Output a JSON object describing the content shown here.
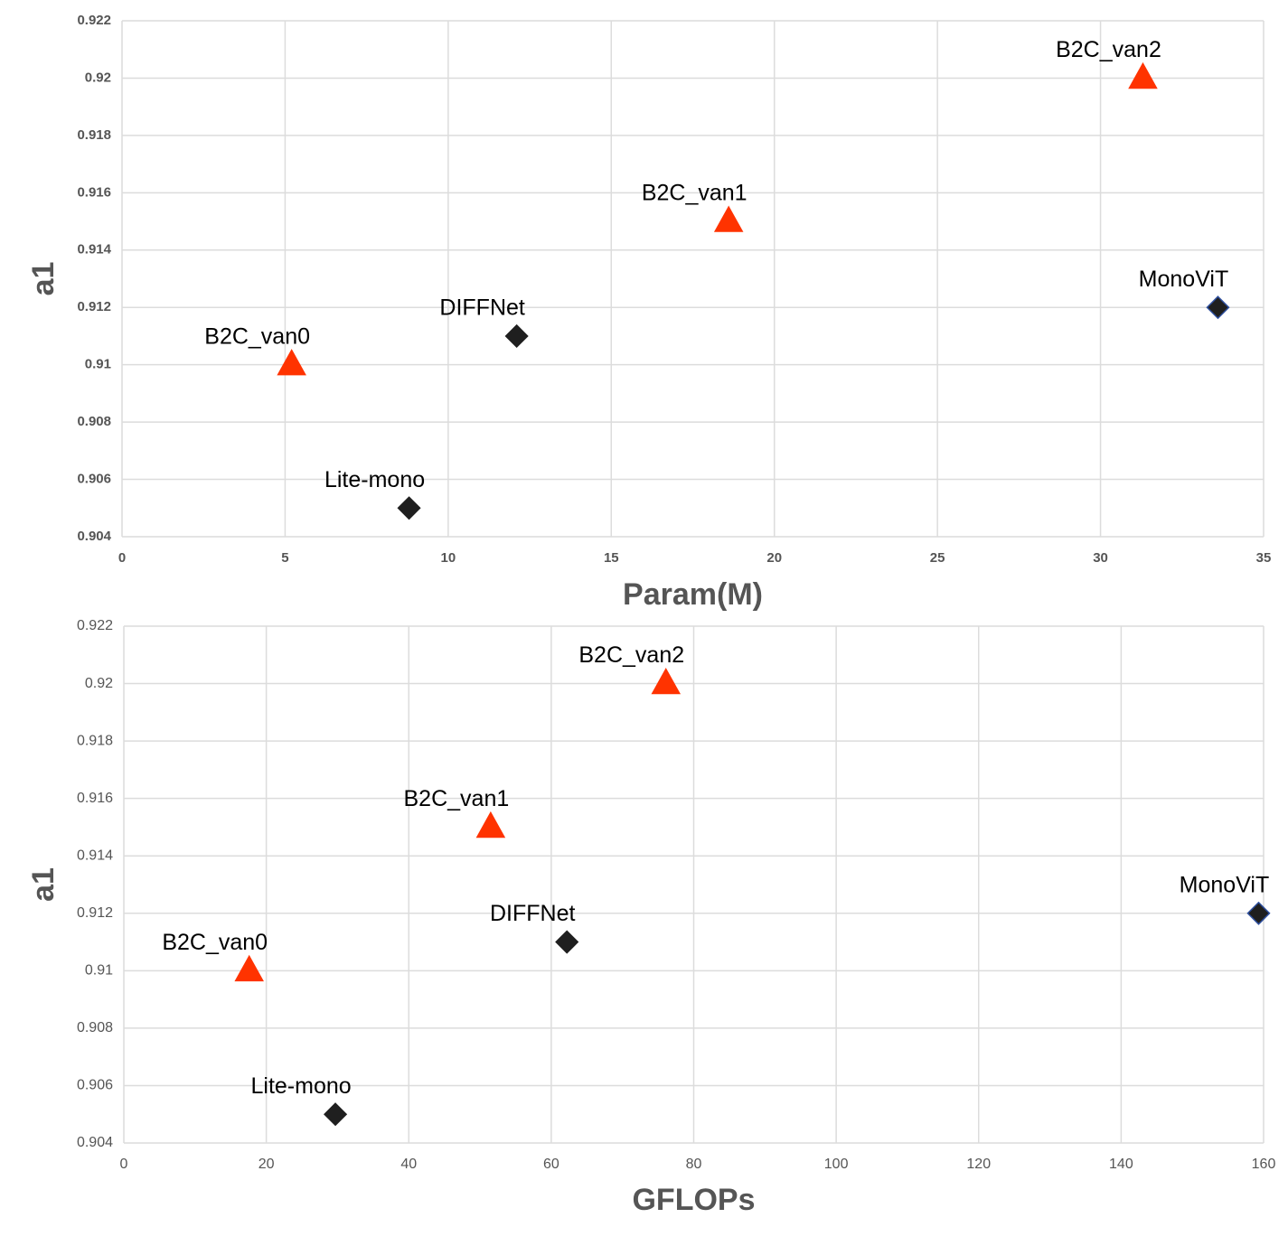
{
  "chart_data": [
    {
      "type": "scatter",
      "xlabel": "Param(M)",
      "ylabel": "a1",
      "xlim": [
        0,
        35
      ],
      "xticks": [
        0,
        5,
        10,
        15,
        20,
        25,
        30,
        35
      ],
      "ylim": [
        0.904,
        0.922
      ],
      "yticks": [
        0.904,
        0.906,
        0.908,
        0.91,
        0.912,
        0.914,
        0.916,
        0.918,
        0.92,
        0.922
      ],
      "grid": true,
      "series": [
        {
          "marker": "triangle",
          "color": "#ff3300",
          "edgecolor": "#ff3300",
          "x": [
            5.2,
            18.6,
            31.3
          ],
          "values": [
            0.91,
            0.915,
            0.92
          ],
          "labels": [
            "B2C_van0",
            "B2C_van1",
            "B2C_van2"
          ]
        },
        {
          "marker": "diamond",
          "color": "#1f1f1f",
          "edgecolor": "#1f1f1f",
          "x": [
            8.8,
            12.1
          ],
          "values": [
            0.905,
            0.911
          ],
          "labels": [
            "Lite-mono",
            "DIFFNet"
          ]
        },
        {
          "marker": "diamond",
          "color": "#1f1f1f",
          "edgecolor": "#2e4f9e",
          "x": [
            33.6
          ],
          "values": [
            0.912
          ],
          "labels": [
            "MonoViT"
          ]
        }
      ]
    },
    {
      "type": "scatter",
      "xlabel": "GFLOPs",
      "ylabel": "a1",
      "xlim": [
        0,
        160
      ],
      "xticks": [
        0,
        20,
        40,
        60,
        80,
        100,
        120,
        140,
        160
      ],
      "ylim": [
        0.904,
        0.922
      ],
      "yticks": [
        0.904,
        0.906,
        0.908,
        0.91,
        0.912,
        0.914,
        0.916,
        0.918,
        0.92,
        0.922
      ],
      "grid": true,
      "series": [
        {
          "marker": "triangle",
          "color": "#ff3300",
          "edgecolor": "#ff3300",
          "x": [
            17.6,
            51.5,
            76.1
          ],
          "values": [
            0.91,
            0.915,
            0.92
          ],
          "labels": [
            "B2C_van0",
            "B2C_van1",
            "B2C_van2"
          ]
        },
        {
          "marker": "diamond",
          "color": "#1f1f1f",
          "edgecolor": "#1f1f1f",
          "x": [
            29.7,
            62.2
          ],
          "values": [
            0.905,
            0.911
          ],
          "labels": [
            "Lite-mono",
            "DIFFNet"
          ]
        },
        {
          "marker": "diamond",
          "color": "#1f1f1f",
          "edgecolor": "#2e4f9e",
          "x": [
            159.3
          ],
          "values": [
            0.912
          ],
          "labels": [
            "MonoViT"
          ]
        }
      ]
    }
  ]
}
